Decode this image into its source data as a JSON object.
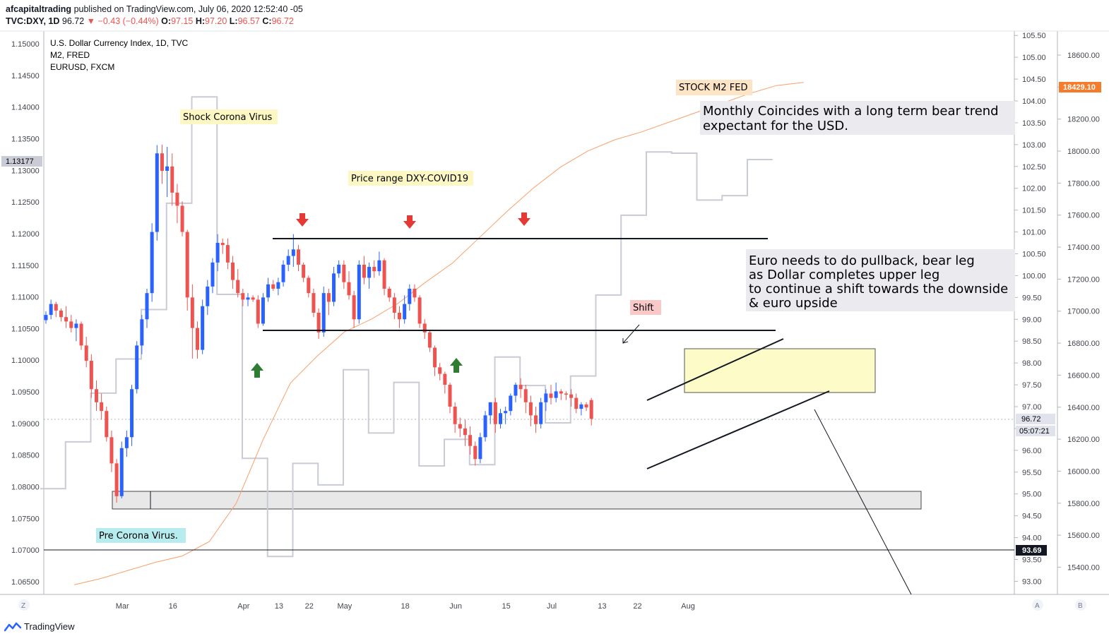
{
  "header": {
    "author": "afcapitaltrading",
    "published": "published on TradingView.com, July 06, 2020 12:52:40 -05",
    "symbol": "TVC:DXY, 1D",
    "last": "96.72",
    "change": "−0.43 (−0.44%)",
    "o_label": "O:",
    "o": "97.15",
    "h_label": "H:",
    "h": "97.20",
    "l_label": "L:",
    "l": "96.57",
    "c_label": "C:",
    "c": "96.72"
  },
  "legend": [
    "U.S. Dollar Currency Index, 1D, TVC",
    "M2, FRED",
    "EURUSD, FXCM"
  ],
  "footer": {
    "brand": "TradingView"
  },
  "scale_buttons": {
    "left": "Z",
    "auto": "A",
    "log": "B"
  },
  "price_tags": {
    "eurusd_current": "1.13177",
    "dxy_current": "96.72",
    "countdown": "05:07:21",
    "dxy_level": "93.69",
    "m2_current": "18429.10"
  },
  "colors": {
    "up": "#2962ff",
    "down": "#ef5350",
    "m2": "#f7a16b",
    "eurusd": "#c9ccd6",
    "m2_tag": "#f57c2a"
  },
  "annotations": {
    "shock": "Shock Corona Virus",
    "price_range": "Price range DXY-COVID19",
    "stock_m2": "STOCK M2 FED",
    "monthly_1": "Monthly Coincides with a long term bear trend",
    "monthly_2": "expectant for the USD.",
    "euro_1": "Euro needs to do pullback, bear leg",
    "euro_2": "as Dollar completes upper leg",
    "euro_3": "to continue a shift towards the downside",
    "euro_4": "& euro upside",
    "shift": "Shift",
    "pre": "Pre Corona Virus."
  },
  "chart_data": {
    "type": "line",
    "x_ticks": [
      "Mar",
      "16",
      "Apr",
      "13",
      "22",
      "May",
      "18",
      "Jun",
      "15",
      "Jul",
      "13",
      "22",
      "Aug"
    ],
    "left_axis": {
      "ticks": [
        "1.15000",
        "1.14500",
        "1.14000",
        "1.13500",
        "1.13000",
        "1.12500",
        "1.12000",
        "1.11500",
        "1.11000",
        "1.10500",
        "1.10000",
        "1.09500",
        "1.09000",
        "1.08500",
        "1.08000",
        "1.07500",
        "1.07000",
        "1.06500"
      ],
      "range": [
        1.063,
        1.152
      ]
    },
    "right_axis": {
      "ticks": [
        "105.50",
        "105.00",
        "104.50",
        "104.00",
        "103.50",
        "103.00",
        "102.50",
        "102.00",
        "101.50",
        "101.00",
        "100.50",
        "100.00",
        "99.50",
        "99.00",
        "98.50",
        "98.00",
        "97.50",
        "97.00",
        "96.50",
        "96.00",
        "95.50",
        "95.00",
        "94.50",
        "94.00",
        "93.50",
        "93.00"
      ],
      "range": [
        92.7,
        105.6
      ]
    },
    "m2_axis": {
      "ticks": [
        "18600.00",
        "18400.00",
        "18200.00",
        "18000.00",
        "17800.00",
        "17600.00",
        "17400.00",
        "17200.00",
        "17000.00",
        "16800.00",
        "16600.00",
        "16400.00",
        "16200.00",
        "16000.00",
        "15800.00",
        "15600.00",
        "15400.00"
      ],
      "range": [
        15230,
        18750
      ]
    },
    "dxy_candles": [
      [
        98.98,
        99.18,
        98.9,
        99.1
      ],
      [
        99.1,
        99.45,
        99.0,
        99.35
      ],
      [
        99.35,
        99.4,
        99.05,
        99.2
      ],
      [
        99.2,
        99.25,
        98.95,
        99.05
      ],
      [
        99.05,
        99.3,
        98.8,
        98.95
      ],
      [
        98.95,
        99.1,
        98.7,
        98.8
      ],
      [
        98.8,
        99.0,
        98.5,
        98.9
      ],
      [
        98.9,
        98.95,
        98.3,
        98.4
      ],
      [
        98.4,
        98.6,
        97.9,
        98.05
      ],
      [
        98.05,
        98.2,
        97.2,
        97.4
      ],
      [
        97.4,
        97.6,
        96.9,
        97.1
      ],
      [
        97.1,
        97.3,
        96.7,
        96.9
      ],
      [
        96.9,
        97.0,
        96.2,
        96.3
      ],
      [
        96.3,
        96.45,
        95.5,
        95.7
      ],
      [
        95.7,
        95.8,
        94.8,
        94.95
      ],
      [
        94.95,
        96.2,
        94.9,
        96.05
      ],
      [
        96.05,
        96.45,
        95.85,
        96.3
      ],
      [
        96.3,
        97.5,
        96.1,
        97.4
      ],
      [
        97.4,
        98.5,
        97.3,
        98.4
      ],
      [
        98.4,
        99.1,
        98.2,
        99.0
      ],
      [
        99.0,
        99.7,
        98.8,
        99.6
      ],
      [
        99.6,
        101.2,
        99.4,
        101.0
      ],
      [
        101.0,
        102.99,
        100.8,
        102.8
      ],
      [
        102.8,
        103.0,
        102.1,
        102.4
      ],
      [
        102.4,
        102.95,
        101.8,
        102.5
      ],
      [
        102.5,
        102.8,
        101.6,
        101.9
      ],
      [
        101.9,
        102.1,
        101.2,
        101.6
      ],
      [
        101.6,
        101.7,
        100.9,
        101.0
      ],
      [
        101.0,
        101.05,
        99.2,
        99.5
      ],
      [
        99.5,
        99.8,
        98.1,
        98.8
      ],
      [
        98.8,
        98.95,
        98.1,
        98.3
      ],
      [
        98.3,
        99.45,
        98.2,
        99.3
      ],
      [
        99.3,
        99.9,
        99.1,
        99.75
      ],
      [
        99.75,
        100.4,
        99.6,
        100.3
      ],
      [
        100.3,
        100.95,
        100.1,
        100.75
      ],
      [
        100.75,
        100.85,
        100.5,
        100.7
      ],
      [
        100.7,
        100.85,
        100.15,
        100.3
      ],
      [
        100.3,
        100.45,
        99.7,
        99.9
      ],
      [
        99.9,
        100.15,
        99.5,
        99.6
      ],
      [
        99.6,
        99.7,
        99.3,
        99.45
      ],
      [
        99.45,
        99.6,
        99.3,
        99.5
      ],
      [
        99.5,
        99.55,
        99.4,
        99.45
      ],
      [
        99.45,
        99.55,
        98.8,
        98.9
      ],
      [
        98.9,
        99.6,
        98.85,
        99.5
      ],
      [
        99.5,
        99.95,
        99.4,
        99.8
      ],
      [
        99.8,
        99.9,
        99.65,
        99.7
      ],
      [
        99.7,
        99.95,
        99.55,
        99.85
      ],
      [
        99.85,
        100.35,
        99.75,
        100.25
      ],
      [
        100.25,
        100.6,
        100.1,
        100.45
      ],
      [
        100.45,
        100.95,
        100.2,
        100.6
      ],
      [
        100.6,
        100.7,
        100.1,
        100.25
      ],
      [
        100.25,
        100.3,
        99.85,
        99.95
      ],
      [
        99.95,
        100.0,
        99.5,
        99.6
      ],
      [
        99.6,
        99.7,
        99.05,
        99.15
      ],
      [
        99.15,
        99.25,
        98.55,
        98.7
      ],
      [
        98.7,
        99.75,
        98.6,
        99.6
      ],
      [
        99.6,
        99.7,
        99.1,
        99.4
      ],
      [
        99.4,
        100.2,
        99.3,
        100.05
      ],
      [
        100.05,
        100.35,
        99.95,
        100.25
      ],
      [
        100.25,
        100.35,
        99.7,
        99.85
      ],
      [
        99.85,
        100.1,
        99.45,
        99.55
      ],
      [
        99.55,
        99.65,
        98.8,
        99.0
      ],
      [
        99.0,
        100.35,
        98.9,
        100.25
      ],
      [
        100.25,
        100.45,
        99.8,
        99.95
      ],
      [
        99.95,
        100.3,
        99.7,
        100.2
      ],
      [
        100.2,
        100.35,
        99.95,
        100.1
      ],
      [
        100.1,
        100.55,
        100.0,
        100.35
      ],
      [
        100.35,
        100.4,
        99.55,
        99.7
      ],
      [
        99.7,
        99.75,
        99.4,
        99.5
      ],
      [
        99.5,
        99.6,
        99.0,
        99.15
      ],
      [
        99.15,
        99.3,
        98.8,
        99.0
      ],
      [
        99.0,
        99.55,
        98.9,
        99.35
      ],
      [
        99.35,
        99.8,
        99.2,
        99.7
      ],
      [
        99.7,
        99.8,
        99.4,
        99.5
      ],
      [
        99.5,
        99.55,
        98.8,
        98.9
      ],
      [
        98.9,
        99.0,
        98.55,
        98.7
      ],
      [
        98.7,
        98.75,
        98.25,
        98.35
      ],
      [
        98.35,
        98.4,
        97.7,
        97.9
      ],
      [
        97.9,
        98.0,
        97.6,
        97.75
      ],
      [
        97.75,
        97.8,
        97.3,
        97.5
      ],
      [
        97.5,
        97.55,
        96.85,
        97.0
      ],
      [
        97.0,
        97.1,
        96.4,
        96.6
      ],
      [
        96.6,
        96.75,
        96.3,
        96.5
      ],
      [
        96.5,
        96.7,
        96.1,
        96.35
      ],
      [
        96.35,
        96.55,
        95.9,
        96.1
      ],
      [
        96.1,
        96.2,
        95.65,
        95.8
      ],
      [
        95.8,
        96.4,
        95.7,
        96.3
      ],
      [
        96.3,
        96.9,
        96.2,
        96.8
      ],
      [
        96.8,
        97.1,
        96.6,
        97.1
      ],
      [
        97.1,
        97.2,
        96.4,
        96.6
      ],
      [
        96.6,
        96.95,
        96.5,
        96.85
      ],
      [
        96.85,
        97.0,
        96.6,
        96.9
      ],
      [
        96.9,
        97.3,
        96.8,
        97.25
      ],
      [
        97.25,
        97.55,
        97.1,
        97.5
      ],
      [
        97.5,
        97.65,
        97.2,
        97.4
      ],
      [
        97.4,
        97.5,
        96.85,
        97.1
      ],
      [
        97.1,
        97.25,
        96.55,
        96.8
      ],
      [
        96.8,
        97.0,
        96.4,
        96.6
      ],
      [
        96.6,
        97.2,
        96.5,
        97.1
      ],
      [
        97.1,
        97.4,
        96.9,
        97.3
      ],
      [
        97.3,
        97.5,
        97.05,
        97.2
      ],
      [
        97.2,
        97.55,
        97.1,
        97.35
      ],
      [
        97.35,
        97.4,
        97.15,
        97.3
      ],
      [
        97.3,
        97.35,
        97.15,
        97.28
      ],
      [
        97.28,
        97.4,
        97.0,
        97.2
      ],
      [
        97.2,
        97.3,
        96.85,
        96.95
      ],
      [
        96.95,
        97.1,
        96.8,
        97.05
      ],
      [
        97.05,
        97.1,
        96.9,
        96.98
      ],
      [
        97.15,
        97.2,
        96.57,
        96.72
      ]
    ],
    "m2_weekly": [
      15290,
      15330,
      15380,
      15430,
      15470,
      15560,
      15800,
      16200,
      16550,
      16720,
      16870,
      16950,
      17050,
      17180,
      17300,
      17460,
      17620,
      17770,
      17900,
      18000,
      18070,
      18120,
      18180,
      18240,
      18300,
      18360,
      18410,
      18429.1
    ],
    "eurusd_weekly": [
      1.0797,
      1.0871,
      1.0948,
      1.1002,
      1.108,
      1.1248,
      1.1416,
      1.1104,
      1.0845,
      1.069,
      1.0837,
      1.0803,
      1.0985,
      1.0885,
      1.0965,
      1.0833,
      1.0875,
      1.0835,
      1.1005,
      1.096,
      1.0901,
      1.0975,
      1.1103,
      1.1229,
      1.1329,
      1.1327,
      1.1253,
      1.126,
      1.1317
    ]
  }
}
